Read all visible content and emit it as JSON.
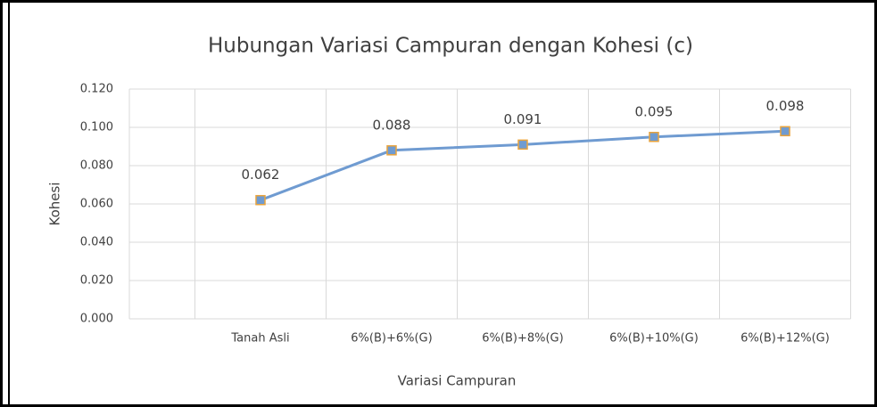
{
  "chart_data": {
    "type": "line",
    "title": "Hubungan Variasi Campuran dengan Kohesi (c)",
    "x_label": "Variasi Campuran",
    "y_label": "Kohesi",
    "categories": [
      null,
      "Tanah Asli",
      "6%(B)+6%(G)",
      "6%(B)+8%(G)",
      "6%(B)+10%(G)",
      "6%(B)+12%(G)"
    ],
    "series": [
      {
        "name": "Kohesi",
        "color": "#6f9bd1",
        "marker_color": "#e8a33d",
        "values": [
          null,
          0.062,
          0.088,
          0.091,
          0.095,
          0.098
        ],
        "value_labels": [
          null,
          "0.062",
          "0.088",
          "0.091",
          "0.095",
          "0.098"
        ]
      }
    ],
    "ylim": [
      0,
      0.12
    ],
    "yticks": [
      {
        "value": 0,
        "label": "0.000"
      },
      {
        "value": 0.02,
        "label": "0.020"
      },
      {
        "value": 0.04,
        "label": "0.040"
      },
      {
        "value": 0.06,
        "label": "0.060"
      },
      {
        "value": 0.08,
        "label": "0.080"
      },
      {
        "value": 0.1,
        "label": "0.100"
      },
      {
        "value": 0.12,
        "label": "0.120"
      }
    ],
    "grid": true
  }
}
